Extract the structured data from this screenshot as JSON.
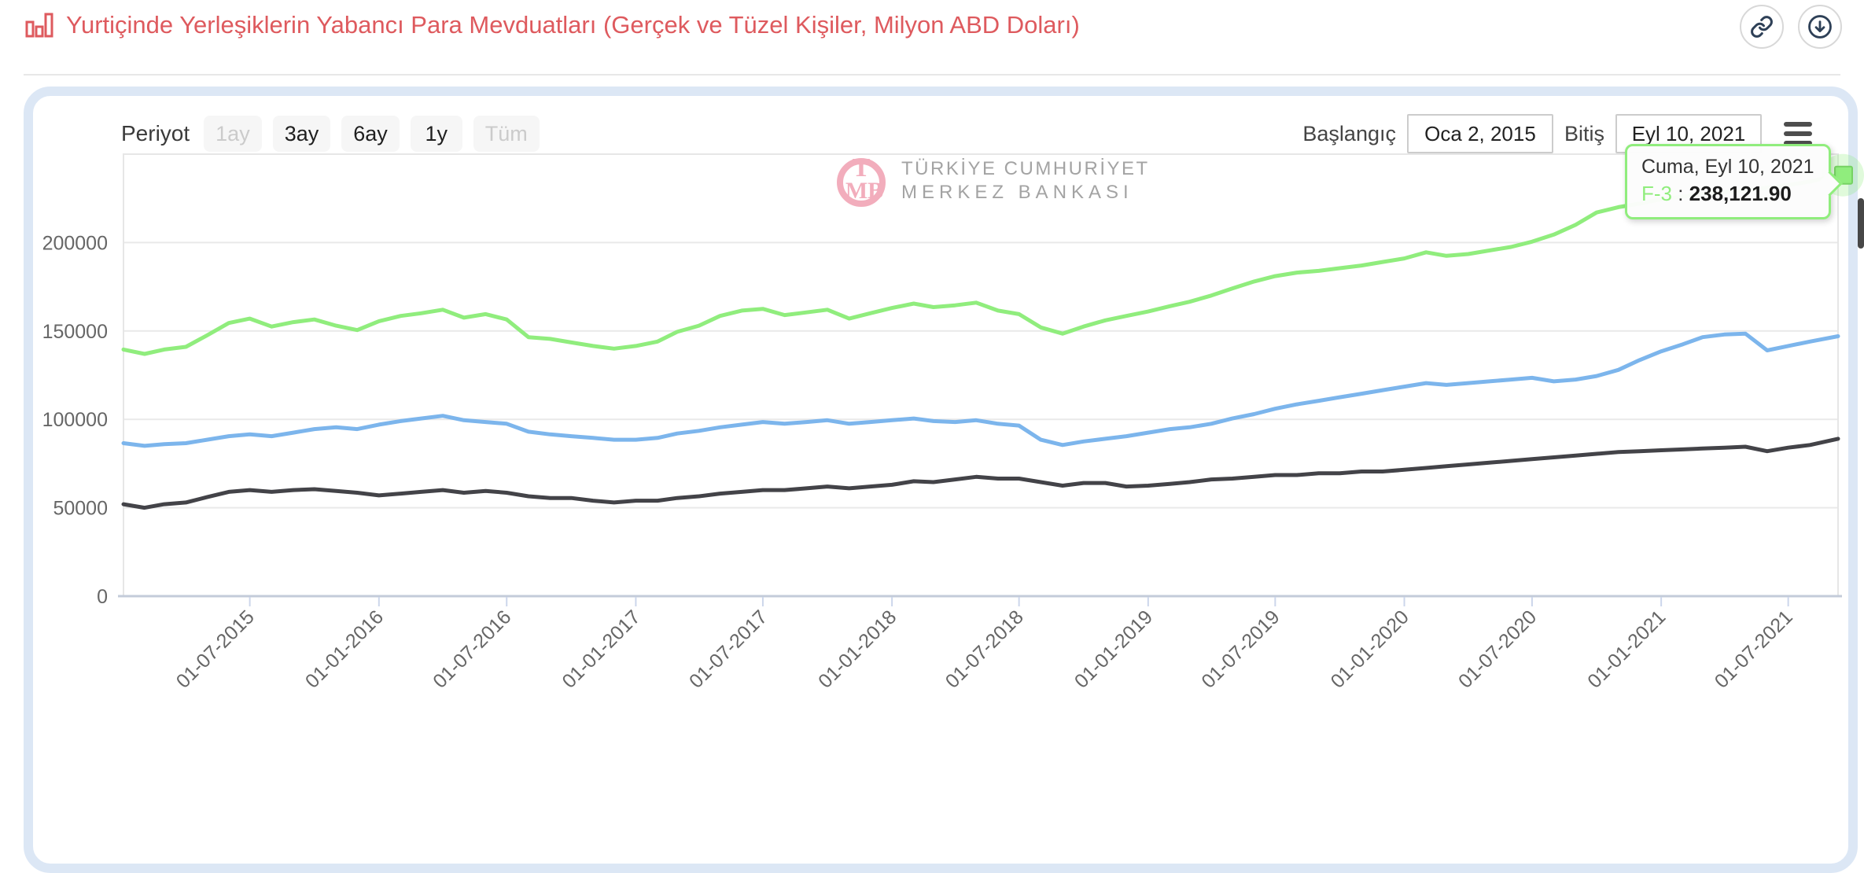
{
  "header": {
    "title": "Yurtiçinde Yerleşiklerin Yabancı Para Mevduatları (Gerçek ve Tüzel Kişiler, Milyon ABD Doları)",
    "title_color": "#de5a5e",
    "actions": [
      {
        "name": "link",
        "icon": "link-icon"
      },
      {
        "name": "download",
        "icon": "download-icon"
      }
    ]
  },
  "toolbar": {
    "period_label": "Periyot",
    "periods": [
      {
        "label": "1ay",
        "enabled": false
      },
      {
        "label": "3ay",
        "enabled": true
      },
      {
        "label": "6ay",
        "enabled": true
      },
      {
        "label": "1y",
        "enabled": true
      },
      {
        "label": "Tüm",
        "enabled": false
      }
    ],
    "start_label": "Başlangıç",
    "start_value": "Oca 2, 2015",
    "end_label": "Bitiş",
    "end_value": "Eyl 10, 2021"
  },
  "watermark": {
    "monogram": "TMB",
    "line1": "TÜRKİYE CUMHURİYET",
    "line2": "MERKEZ BANKASI"
  },
  "tooltip": {
    "date": "Cuma, Eyl 10, 2021",
    "series_name": "F-3",
    "separator": " : ",
    "value": "238,121.90"
  },
  "chart_data": {
    "type": "line",
    "x_start": "2015-01-02",
    "x_end": "2021-09-10",
    "ylim": [
      0,
      250000
    ],
    "y_ticks": [
      0,
      50000,
      100000,
      150000,
      200000
    ],
    "grid": true,
    "legend_position": "none",
    "x_tick_labels": [
      {
        "date": "2015-07-01",
        "label": "01-07-2015"
      },
      {
        "date": "2016-01-01",
        "label": "01-01-2016"
      },
      {
        "date": "2016-07-01",
        "label": "01-07-2016"
      },
      {
        "date": "2017-01-01",
        "label": "01-01-2017"
      },
      {
        "date": "2017-07-01",
        "label": "01-07-2017"
      },
      {
        "date": "2018-01-01",
        "label": "01-01-2018"
      },
      {
        "date": "2018-07-01",
        "label": "01-07-2018"
      },
      {
        "date": "2019-01-01",
        "label": "01-01-2019"
      },
      {
        "date": "2019-07-01",
        "label": "01-07-2019"
      },
      {
        "date": "2020-01-01",
        "label": "01-01-2020"
      },
      {
        "date": "2020-07-01",
        "label": "01-07-2020"
      },
      {
        "date": "2021-01-01",
        "label": "01-01-2021"
      },
      {
        "date": "2021-07-01",
        "label": "01-07-2021"
      }
    ],
    "x": [
      "2015-01-02",
      "2015-02-01",
      "2015-03-01",
      "2015-04-01",
      "2015-05-01",
      "2015-06-01",
      "2015-07-01",
      "2015-08-01",
      "2015-09-01",
      "2015-10-01",
      "2015-11-01",
      "2015-12-01",
      "2016-01-01",
      "2016-02-01",
      "2016-03-01",
      "2016-04-01",
      "2016-05-01",
      "2016-06-01",
      "2016-07-01",
      "2016-08-01",
      "2016-09-01",
      "2016-10-01",
      "2016-11-01",
      "2016-12-01",
      "2017-01-01",
      "2017-02-01",
      "2017-03-01",
      "2017-04-01",
      "2017-05-01",
      "2017-06-01",
      "2017-07-01",
      "2017-08-01",
      "2017-09-01",
      "2017-10-01",
      "2017-11-01",
      "2017-12-01",
      "2018-01-01",
      "2018-02-01",
      "2018-03-01",
      "2018-04-01",
      "2018-05-01",
      "2018-06-01",
      "2018-07-01",
      "2018-08-01",
      "2018-09-01",
      "2018-10-01",
      "2018-11-01",
      "2018-12-01",
      "2019-01-01",
      "2019-02-01",
      "2019-03-01",
      "2019-04-01",
      "2019-05-01",
      "2019-06-01",
      "2019-07-01",
      "2019-08-01",
      "2019-09-01",
      "2019-10-01",
      "2019-11-01",
      "2019-12-01",
      "2020-01-01",
      "2020-02-01",
      "2020-03-01",
      "2020-04-01",
      "2020-05-01",
      "2020-06-01",
      "2020-07-01",
      "2020-08-01",
      "2020-09-01",
      "2020-10-01",
      "2020-11-01",
      "2020-12-01",
      "2021-01-01",
      "2021-02-01",
      "2021-03-01",
      "2021-04-01",
      "2021-05-01",
      "2021-06-01",
      "2021-07-01",
      "2021-08-01",
      "2021-09-10"
    ],
    "series": [
      {
        "name": "F-3",
        "color": "#90ed7d",
        "end_marker": true,
        "y": [
          139500,
          137000,
          139500,
          141000,
          147500,
          154500,
          157000,
          152500,
          155000,
          156500,
          153000,
          150500,
          155500,
          158500,
          160000,
          162000,
          157500,
          159500,
          156500,
          146500,
          145500,
          143500,
          141500,
          140000,
          141500,
          144000,
          149500,
          153000,
          158500,
          161500,
          162500,
          159000,
          160500,
          162000,
          157000,
          160000,
          163000,
          165500,
          163500,
          164500,
          166000,
          161500,
          159500,
          152000,
          148500,
          152500,
          156000,
          158500,
          161000,
          164000,
          166500,
          170000,
          174000,
          178000,
          181000,
          183000,
          184000,
          185500,
          187000,
          189000,
          191000,
          194500,
          192500,
          193500,
          195500,
          197500,
          200500,
          204500,
          210000,
          217000,
          220000,
          222000,
          224500,
          226000,
          227500,
          228500,
          229500,
          231000,
          232500,
          234500,
          238121.9
        ]
      },
      {
        "name": "",
        "color": "#7cb5ec",
        "end_marker": false,
        "y": [
          86500,
          85000,
          86000,
          86500,
          88500,
          90500,
          91500,
          90500,
          92500,
          94500,
          95500,
          94500,
          97000,
          99000,
          100500,
          102000,
          99500,
          98500,
          97500,
          93000,
          91500,
          90500,
          89500,
          88500,
          88500,
          89500,
          92000,
          93500,
          95500,
          97000,
          98500,
          97500,
          98500,
          99500,
          97500,
          98500,
          99500,
          100500,
          99000,
          98500,
          99500,
          97500,
          96500,
          88500,
          85500,
          87500,
          89000,
          90500,
          92500,
          94500,
          95500,
          97500,
          100500,
          103000,
          106000,
          108500,
          110500,
          112500,
          114500,
          116500,
          118500,
          120500,
          119500,
          120500,
          121500,
          122500,
          123500,
          121500,
          122500,
          124500,
          128000,
          133500,
          138500,
          142500,
          146500,
          148000,
          148500,
          139000,
          141500,
          144000,
          147000
        ]
      },
      {
        "name": "",
        "color": "#434348",
        "end_marker": false,
        "y": [
          52000,
          50000,
          52000,
          53000,
          56000,
          59000,
          60000,
          59000,
          60000,
          60500,
          59500,
          58500,
          57000,
          58000,
          59000,
          60000,
          58500,
          59500,
          58500,
          56500,
          55500,
          55500,
          54000,
          53000,
          54000,
          54000,
          55500,
          56500,
          58000,
          59000,
          60000,
          60000,
          61000,
          62000,
          61000,
          62000,
          63000,
          65000,
          64500,
          66000,
          67500,
          66500,
          66500,
          64500,
          62500,
          64000,
          64000,
          62000,
          62500,
          63500,
          64500,
          66000,
          66500,
          67500,
          68500,
          68500,
          69500,
          69500,
          70500,
          70500,
          71500,
          72500,
          73500,
          74500,
          75500,
          76500,
          77500,
          78500,
          79500,
          80500,
          81500,
          82000,
          82500,
          83000,
          83500,
          84000,
          84500,
          82000,
          84000,
          85500,
          89000
        ]
      }
    ]
  }
}
